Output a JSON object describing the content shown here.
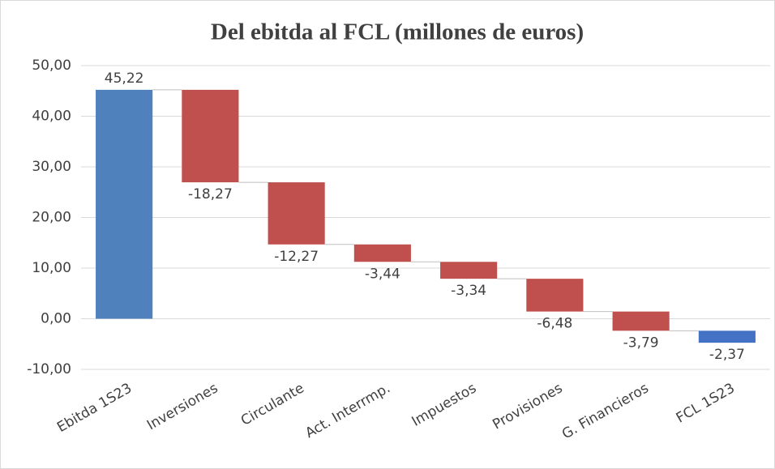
{
  "chart_data": {
    "type": "waterfall",
    "title": "Del ebitda al FCL (millones de euros)",
    "categories": [
      "Ebitda 1S23",
      "Inversiones",
      "Circulante",
      "Act. Interrmp.",
      "Impuestos",
      "Provisiones",
      "G. Financieros",
      "FCL 1S23"
    ],
    "values": [
      45.22,
      -18.27,
      -12.27,
      -3.44,
      -3.34,
      -6.48,
      -3.79,
      -2.37
    ],
    "value_labels": [
      "45,22",
      "-18,27",
      "-12,27",
      "-3,44",
      "-3,34",
      "-6,48",
      "-3,79",
      "-2,37"
    ],
    "colors": [
      "#4f81bd",
      "#c0504d",
      "#c0504d",
      "#c0504d",
      "#c0504d",
      "#c0504d",
      "#c0504d",
      "#4472c4"
    ],
    "ylim": [
      -10,
      50
    ],
    "yticks": [
      {
        "value": -10,
        "label": "-10,00"
      },
      {
        "value": 0,
        "label": "0,00"
      },
      {
        "value": 10,
        "label": "10,00"
      },
      {
        "value": 20,
        "label": "20,00"
      },
      {
        "value": 30,
        "label": "30,00"
      },
      {
        "value": 40,
        "label": "40,00"
      },
      {
        "value": 50,
        "label": "50,00"
      }
    ],
    "grid": true
  }
}
